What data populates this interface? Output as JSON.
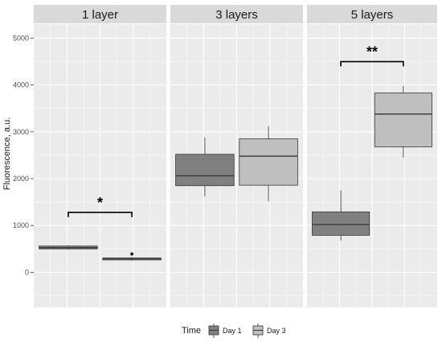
{
  "chart_data": {
    "type": "boxplot",
    "facets": [
      "1 layer",
      "3 layers",
      "5 layers"
    ],
    "ylabel": "Fluorescence, a.u.",
    "ylim": [
      -750,
      5300
    ],
    "yticks": [
      0,
      1000,
      2000,
      3000,
      4000,
      5000
    ],
    "grid": true,
    "legend": {
      "position": "bottom",
      "title": "Time",
      "entries": [
        {
          "label": "Day 1",
          "color": "#808080"
        },
        {
          "label": "Day 3",
          "color": "#bfbfbf"
        }
      ]
    },
    "groups": [
      {
        "facet": "1 layer",
        "series": "Day 1",
        "min": 480,
        "q1": 500,
        "median": 525,
        "q3": 560,
        "max": 580,
        "outliers": []
      },
      {
        "facet": "1 layer",
        "series": "Day 3",
        "min": 250,
        "q1": 265,
        "median": 285,
        "q3": 305,
        "max": 320,
        "outliers": [
          390
        ]
      },
      {
        "facet": "3 layers",
        "series": "Day 1",
        "min": 1620,
        "q1": 1850,
        "median": 2060,
        "q3": 2520,
        "max": 2880,
        "outliers": []
      },
      {
        "facet": "3 layers",
        "series": "Day 3",
        "min": 1520,
        "q1": 1860,
        "median": 2480,
        "q3": 2850,
        "max": 3120,
        "outliers": []
      },
      {
        "facet": "5 layers",
        "series": "Day 1",
        "min": 680,
        "q1": 790,
        "median": 1020,
        "q3": 1290,
        "max": 1750,
        "outliers": []
      },
      {
        "facet": "5 layers",
        "series": "Day 3",
        "min": 2450,
        "q1": 2680,
        "median": 3380,
        "q3": 3830,
        "max": 3980,
        "outliers": []
      }
    ],
    "annotations": [
      {
        "facet": "1 layer",
        "label": "*",
        "y": 1280
      },
      {
        "facet": "5 layers",
        "label": "**",
        "y": 4500
      }
    ]
  },
  "colors": {
    "panel_bg": "#ebebeb",
    "strip_bg": "#d9d9d9",
    "grid": "#ffffff",
    "box_day1": "#808080",
    "box_day3": "#bfbfbf",
    "box_line": "#333333"
  }
}
